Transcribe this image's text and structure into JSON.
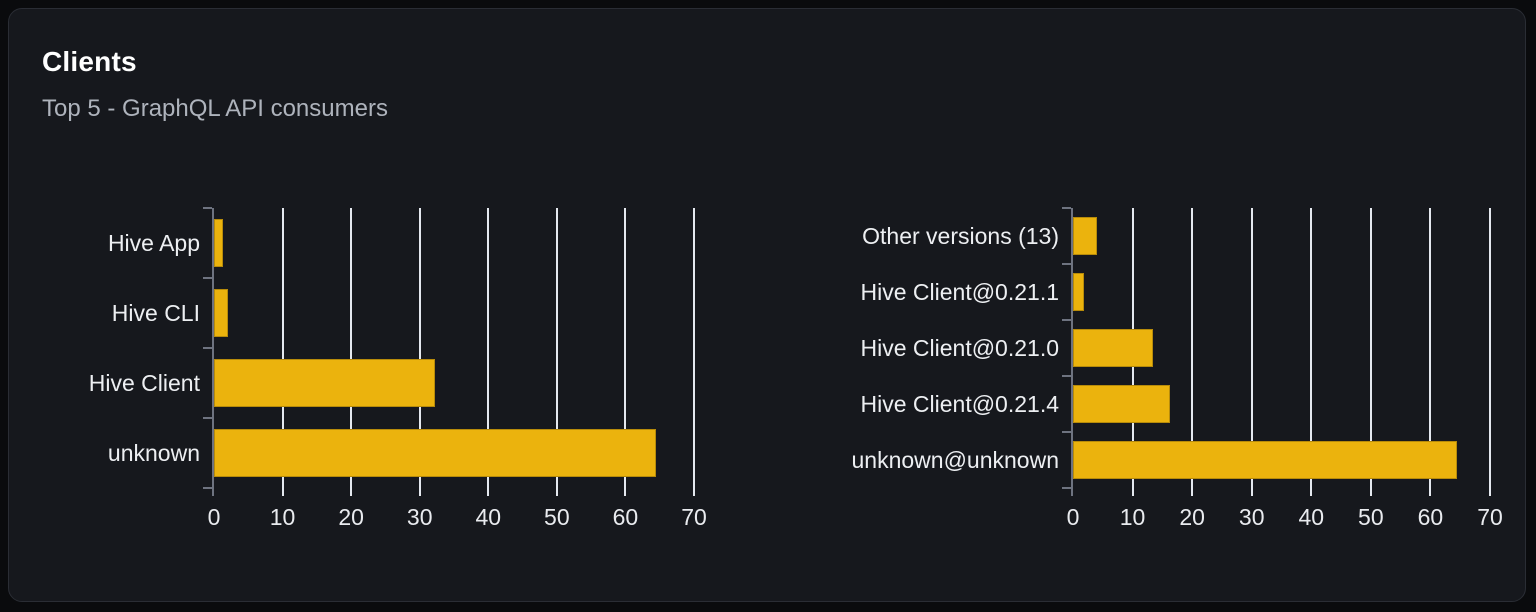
{
  "card": {
    "title": "Clients",
    "subtitle": "Top 5 - GraphQL API consumers"
  },
  "theme": {
    "page_bg": "#0a0b0d",
    "card_bg": "#16181d",
    "card_border": "#2a2d34",
    "bar_color": "#ebb30d",
    "gridline_color": "#e4e8ef",
    "axis_color": "#6e7380",
    "title_color": "#ffffff",
    "subtitle_color": "#aeb3bc",
    "label_color": "#edeff2"
  },
  "chart_data": [
    {
      "type": "bar",
      "orientation": "horizontal",
      "categories": [
        "Hive App",
        "Hive CLI",
        "Hive Client",
        "unknown"
      ],
      "values": [
        1.3,
        2.1,
        32.2,
        64.4
      ],
      "xticks": [
        0,
        10,
        20,
        30,
        40,
        50,
        60,
        70
      ],
      "xlim": [
        0,
        70
      ],
      "xlabel": "",
      "ylabel": "",
      "grid": true,
      "legend": false
    },
    {
      "type": "bar",
      "orientation": "horizontal",
      "categories": [
        "Other versions (13)",
        "Hive Client@0.21.1",
        "Hive Client@0.21.0",
        "Hive Client@0.21.4",
        "unknown@unknown"
      ],
      "values": [
        4.1,
        1.9,
        13.5,
        16.3,
        64.4
      ],
      "xticks": [
        0,
        10,
        20,
        30,
        40,
        50,
        60,
        70
      ],
      "xlim": [
        0,
        70
      ],
      "xlabel": "",
      "ylabel": "",
      "grid": true,
      "legend": false
    }
  ]
}
